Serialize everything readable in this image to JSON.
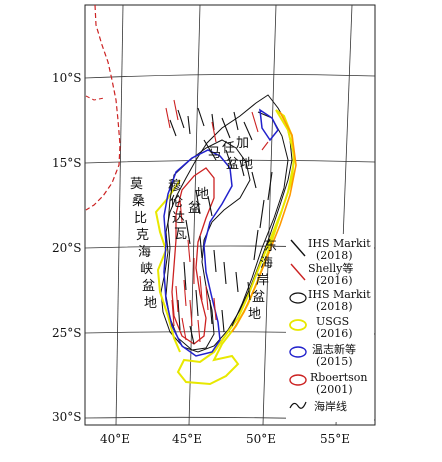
{
  "colors": {
    "frame": "#222222",
    "grid": "#333333",
    "coast_main": "#cc2222",
    "ihs_markit_line": "#111111",
    "shelly_line": "#cc2222",
    "ihs_markit_outline": "#111111",
    "usgs": "#e8e800",
    "wen_zhixin": "#2222cc",
    "rboertson": "#cc2222",
    "coastline": "#111111",
    "orange_outline": "#ff9900"
  },
  "axes": {
    "y_ticks": [
      "10°S",
      "15°S",
      "20°S",
      "25°S",
      "30°S"
    ],
    "x_ticks": [
      "40°E",
      "45°E",
      "50°E",
      "55°E"
    ]
  },
  "basins": {
    "majunga": [
      "马",
      "任",
      "加",
      "盆",
      "地"
    ],
    "morondava": [
      "穆",
      "伦",
      "达",
      "瓦",
      "盆",
      "地"
    ],
    "mozambique_channel": [
      "莫",
      "桑",
      "比",
      "克",
      "海",
      "峡",
      "盆",
      "地"
    ],
    "east_coast": [
      "东",
      "海",
      "岸",
      "盆",
      "地"
    ]
  },
  "legend": [
    {
      "symbol": "line-black",
      "label": "IHS Markit",
      "sub": "(2018)",
      "icon": "black-fault-line-icon"
    },
    {
      "symbol": "line-red",
      "label": "Shelly等",
      "sub": "(2016)",
      "icon": "red-fault-line-icon"
    },
    {
      "symbol": "ellipse-black",
      "label": "IHS Markit",
      "sub": "(2018)",
      "icon": "black-outline-ellipse-icon"
    },
    {
      "symbol": "ellipse-yellow",
      "label": "USGS",
      "sub": "(2016)",
      "icon": "yellow-outline-ellipse-icon"
    },
    {
      "symbol": "ellipse-blue",
      "label": "温志新等",
      "sub": "(2015)",
      "icon": "blue-outline-ellipse-icon"
    },
    {
      "symbol": "ellipse-red",
      "label": "Rboertson",
      "sub": "(2001)",
      "icon": "red-outline-ellipse-icon"
    },
    {
      "symbol": "coast",
      "label": "海岸线",
      "sub": "",
      "icon": "coastline-icon"
    }
  ]
}
